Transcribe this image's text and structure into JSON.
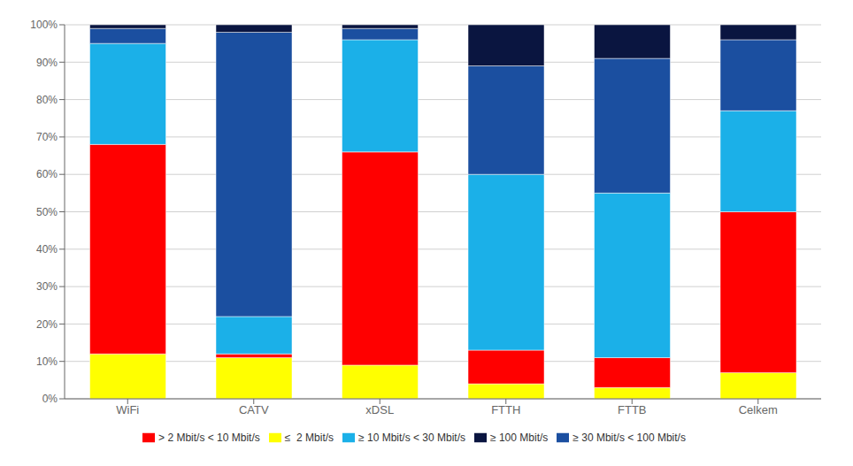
{
  "chart_data": {
    "type": "bar",
    "stacked": true,
    "categories": [
      "WiFi",
      "CATV",
      "xDSL",
      "FTTH",
      "FTTB",
      "Celkem"
    ],
    "series": [
      {
        "name": "≤  2 Mbit/s",
        "color": "#FFFF00",
        "values": [
          12,
          11,
          9,
          4,
          3,
          7
        ]
      },
      {
        "name": "> 2 Mbit/s < 10 Mbit/s",
        "color": "#FF0000",
        "values": [
          56,
          1,
          57,
          9,
          8,
          43
        ]
      },
      {
        "name": "≥ 10 Mbit/s < 30 Mbit/s",
        "color": "#1BB0E8",
        "values": [
          27,
          10,
          30,
          47,
          44,
          27
        ]
      },
      {
        "name": "≥ 30 Mbit/s < 100 Mbit/s",
        "color": "#1B4FA0",
        "values": [
          4,
          76,
          3,
          29,
          36,
          19
        ]
      },
      {
        "name": "≥ 100 Mbit/s",
        "color": "#0A1540",
        "values": [
          1,
          2,
          1,
          11,
          9,
          4
        ]
      }
    ],
    "ylim": [
      0,
      100
    ],
    "yticks": [
      {
        "value": 0,
        "label": "0%"
      },
      {
        "value": 10,
        "label": "10%"
      },
      {
        "value": 20,
        "label": "20%"
      },
      {
        "value": 30,
        "label": "30%"
      },
      {
        "value": 40,
        "label": "40%"
      },
      {
        "value": 50,
        "label": "50%"
      },
      {
        "value": 60,
        "label": "60%"
      },
      {
        "value": 70,
        "label": "70%"
      },
      {
        "value": 80,
        "label": "80%"
      },
      {
        "value": 90,
        "label": "90%"
      },
      {
        "value": 100,
        "label": "100%"
      }
    ],
    "grid": true,
    "legend": "bottom"
  }
}
